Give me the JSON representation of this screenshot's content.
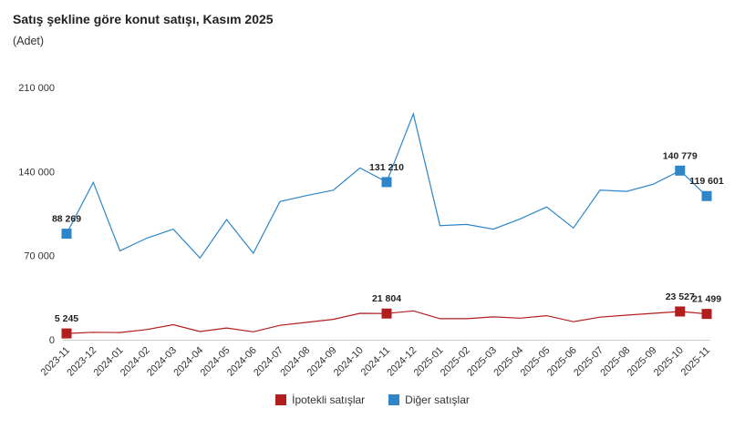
{
  "header": {
    "title": "Satış şekline göre konut satışı, Kasım 2025",
    "subtitle": "(Adet)"
  },
  "chart_data": {
    "type": "line",
    "title": "Satış şekline göre konut satışı, Kasım 2025",
    "ylabel": "(Adet)",
    "ylim": [
      0,
      210000
    ],
    "yticks": [
      {
        "value": 0,
        "label": "0"
      },
      {
        "value": 70000,
        "label": "70 000"
      },
      {
        "value": 140000,
        "label": "140 000"
      },
      {
        "value": 210000,
        "label": "210 000"
      }
    ],
    "grid": false,
    "legend_position": "bottom",
    "categories": [
      "2023-11",
      "2023-12",
      "2024-01",
      "2024-02",
      "2024-03",
      "2024-04",
      "2024-05",
      "2024-06",
      "2024-07",
      "2024-08",
      "2024-09",
      "2024-10",
      "2024-11",
      "2024-12",
      "2025-01",
      "2025-02",
      "2025-03",
      "2025-04",
      "2025-05",
      "2025-06",
      "2025-07",
      "2025-08",
      "2025-09",
      "2025-10",
      "2025-11"
    ],
    "series": [
      {
        "name": "İpotekli satışlar",
        "color": "#b21e1e",
        "values": [
          5245,
          6200,
          6000,
          8500,
          12500,
          6800,
          9800,
          6600,
          12000,
          14500,
          17000,
          22000,
          21804,
          24000,
          17500,
          17500,
          19000,
          18000,
          20000,
          15000,
          18800,
          20500,
          22000,
          23527,
          21499
        ],
        "marked": [
          {
            "index": 0,
            "label": "5 245"
          },
          {
            "index": 12,
            "label": "21 804"
          },
          {
            "index": 23,
            "label": "23 527"
          },
          {
            "index": 24,
            "label": "21 499"
          }
        ]
      },
      {
        "name": "Diğer satışlar",
        "color": "#2e86c8",
        "values": [
          88269,
          131000,
          74000,
          84500,
          92000,
          68000,
          100000,
          72000,
          115000,
          120000,
          124500,
          143000,
          131210,
          188000,
          95000,
          96000,
          92000,
          100500,
          110500,
          93000,
          124500,
          123500,
          129500,
          140779,
          119601
        ],
        "marked": [
          {
            "index": 0,
            "label": "88 269"
          },
          {
            "index": 12,
            "label": "131 210"
          },
          {
            "index": 23,
            "label": "140 779"
          },
          {
            "index": 24,
            "label": "119 601"
          }
        ]
      }
    ]
  }
}
